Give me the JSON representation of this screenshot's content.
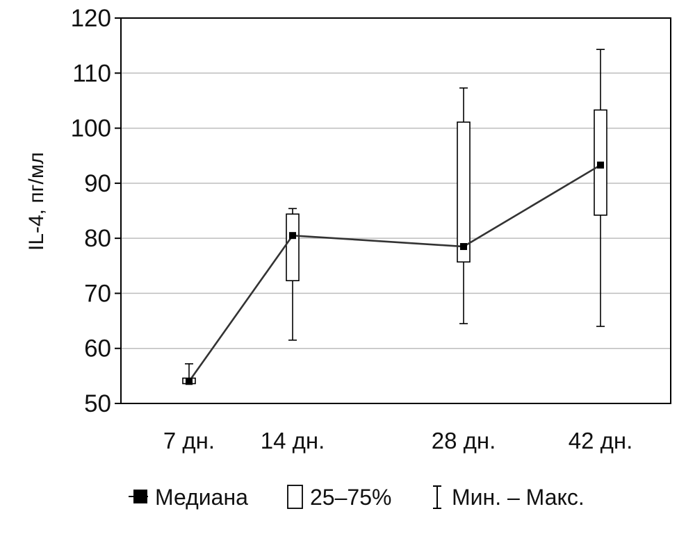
{
  "chart_data": {
    "type": "box",
    "ylabel": "IL-4, пг/мл",
    "xlabel": "",
    "title": "",
    "ylim": [
      50,
      120
    ],
    "yticks": [
      50,
      60,
      70,
      80,
      90,
      100,
      110,
      120
    ],
    "grid": true,
    "categories": [
      "7 дн.",
      "14 дн.",
      "28 дн.",
      "42 дн."
    ],
    "series": [
      {
        "name": "Медиана",
        "values": [
          54.0,
          80.5,
          78.5,
          93.3
        ]
      },
      {
        "name": "25–75%",
        "values": [
          [
            53.6,
            54.6
          ],
          [
            72.3,
            84.4
          ],
          [
            75.7,
            101.1
          ],
          [
            84.2,
            103.3
          ]
        ]
      },
      {
        "name": "Мин. – Макс.",
        "values": [
          [
            53.6,
            57.2
          ],
          [
            61.5,
            85.4
          ],
          [
            64.5,
            107.3
          ],
          [
            64.0,
            114.3
          ]
        ]
      }
    ],
    "legend": {
      "position": "bottom",
      "items": [
        "Медиана",
        "25–75%",
        "Мин. – Макс."
      ]
    },
    "colors": {
      "median_line": "#333333",
      "median_marker": "#000000",
      "box_fill": "#ffffff",
      "grid": "#bdbdbd"
    }
  }
}
